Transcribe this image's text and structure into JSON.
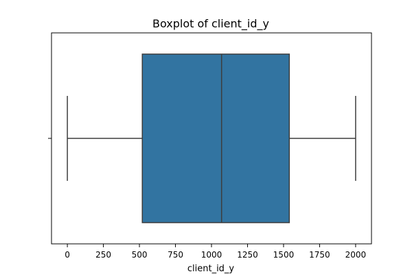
{
  "chart_data": {
    "type": "boxplot",
    "title": "Boxplot of client_id_y",
    "xlabel": "client_id_y",
    "ylabel": "",
    "orientation": "horizontal",
    "xlim": [
      -110,
      2110
    ],
    "xticks": [
      0,
      250,
      500,
      750,
      1000,
      1250,
      1500,
      1750,
      2000
    ],
    "grid": false,
    "legend": "none",
    "box": {
      "whisker_low": 0,
      "q1": 520,
      "median": 1070,
      "q3": 1540,
      "whisker_high": 2000
    },
    "colors": {
      "box_fill": "#3274a1",
      "line": "#3d3d3d",
      "axes": "#000000",
      "background": "#ffffff"
    }
  }
}
